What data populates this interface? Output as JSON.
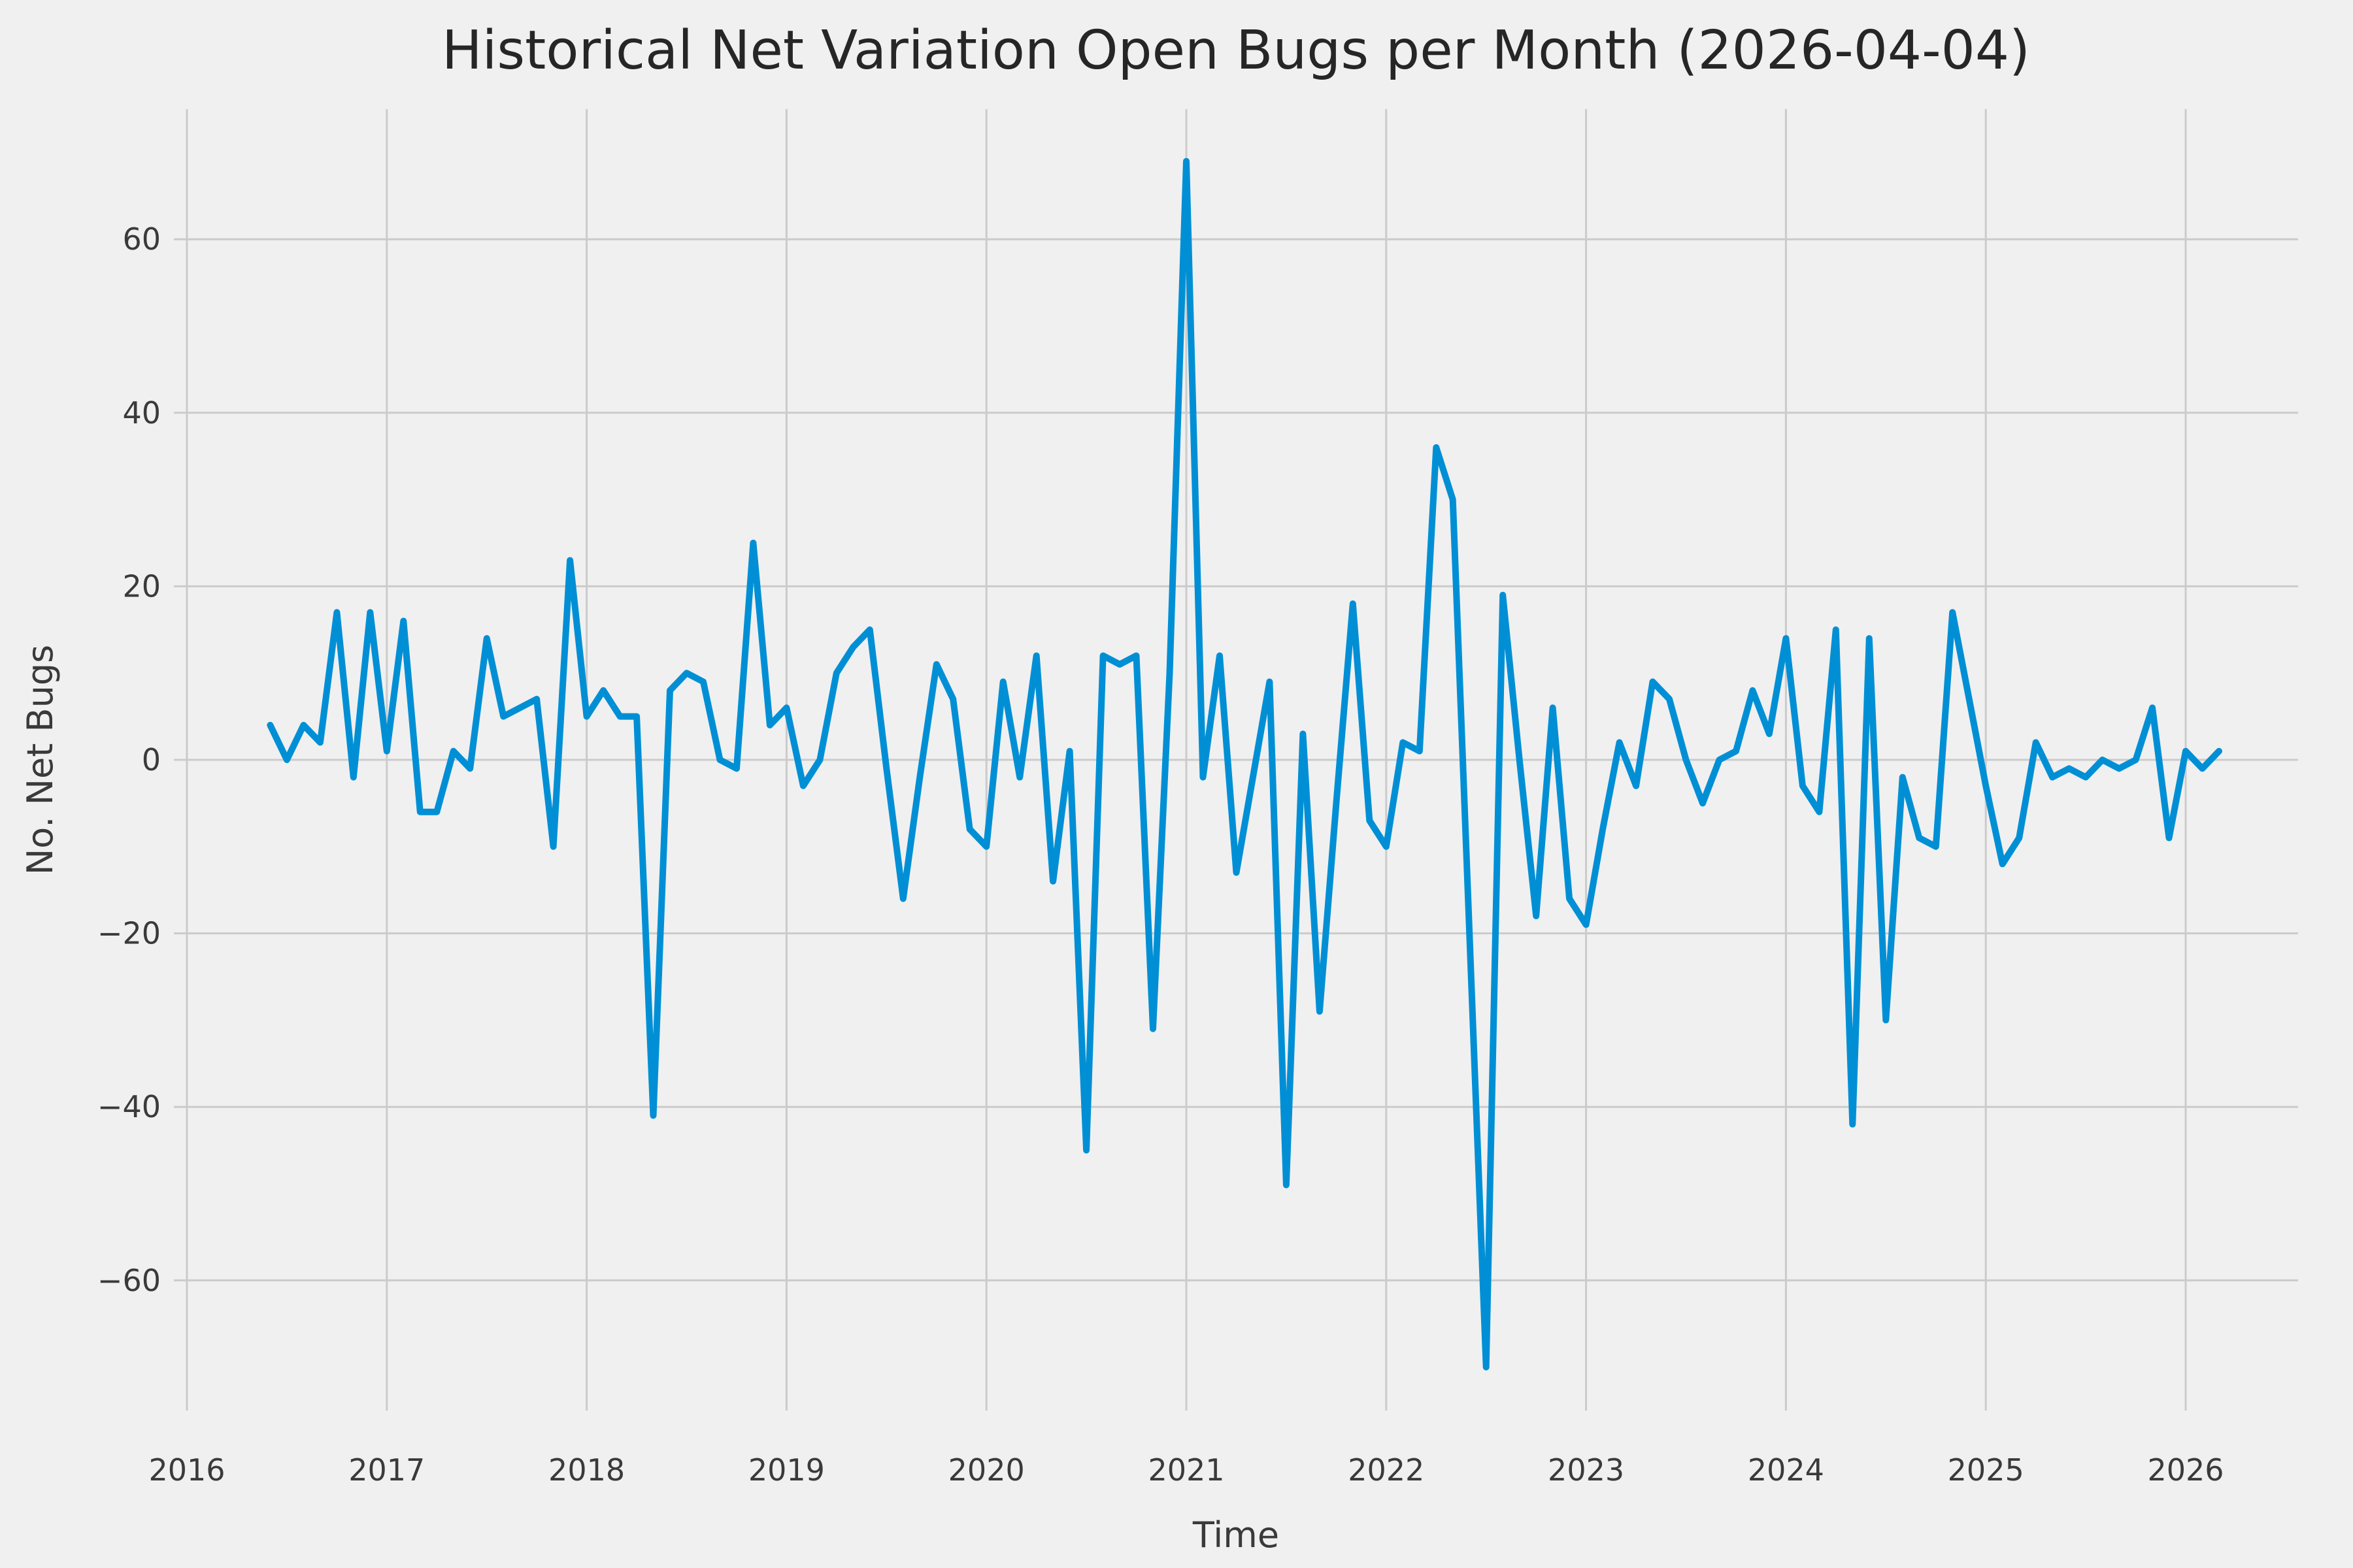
{
  "title": "Historical Net Variation Open Bugs per Month (2026-04-04)",
  "chart_data": {
    "type": "line",
    "title": "Historical Net Variation Open Bugs per Month (2026-04-04)",
    "xlabel": "Time",
    "ylabel": "No. Net Bugs",
    "legend_position": "none",
    "grid": true,
    "line_color": "#008fd5",
    "background_color": "#f0f0f0",
    "grid_color": "#cbcbcb",
    "text_color": "#3a3a3a",
    "xticks": [
      "2016",
      "2017",
      "2018",
      "2019",
      "2020",
      "2021",
      "2022",
      "2023",
      "2024",
      "2025",
      "2026"
    ],
    "yticks": [
      60,
      40,
      20,
      0,
      -20,
      -40,
      -60
    ],
    "ylim": [
      -75,
      75
    ],
    "x": [
      "2016-06",
      "2016-07",
      "2016-08",
      "2016-09",
      "2016-10",
      "2016-11",
      "2016-12",
      "2017-01",
      "2017-02",
      "2017-03",
      "2017-04",
      "2017-05",
      "2017-06",
      "2017-07",
      "2017-08",
      "2017-09",
      "2017-10",
      "2017-11",
      "2017-12",
      "2018-01",
      "2018-02",
      "2018-03",
      "2018-04",
      "2018-05",
      "2018-06",
      "2018-07",
      "2018-08",
      "2018-09",
      "2018-10",
      "2018-11",
      "2018-12",
      "2019-01",
      "2019-02",
      "2019-03",
      "2019-04",
      "2019-05",
      "2019-06",
      "2019-07",
      "2019-08",
      "2019-09",
      "2019-10",
      "2019-11",
      "2019-12",
      "2020-01",
      "2020-02",
      "2020-03",
      "2020-04",
      "2020-05",
      "2020-06",
      "2020-07",
      "2020-08",
      "2020-09",
      "2020-10",
      "2020-11",
      "2020-12",
      "2021-01",
      "2021-02",
      "2021-03",
      "2021-04",
      "2021-05",
      "2021-06",
      "2021-07",
      "2021-08",
      "2021-09",
      "2021-10",
      "2021-11",
      "2021-12",
      "2022-01",
      "2022-02",
      "2022-03",
      "2022-04",
      "2022-05",
      "2022-06",
      "2022-07",
      "2022-08",
      "2022-09",
      "2022-10",
      "2022-11",
      "2022-12",
      "2023-01",
      "2023-02",
      "2023-03",
      "2023-04",
      "2023-05",
      "2023-06",
      "2023-07",
      "2023-08",
      "2023-09",
      "2023-10",
      "2023-11",
      "2023-12",
      "2024-01",
      "2024-02",
      "2024-03",
      "2024-04",
      "2024-05",
      "2024-06",
      "2024-07",
      "2024-08",
      "2024-09",
      "2024-10",
      "2024-11",
      "2024-12",
      "2025-01",
      "2025-02",
      "2025-03",
      "2025-04",
      "2025-05",
      "2025-06",
      "2025-07",
      "2025-08",
      "2025-09",
      "2025-10",
      "2025-11",
      "2025-12",
      "2026-01",
      "2026-02",
      "2026-03"
    ],
    "values": [
      4,
      0,
      4,
      2,
      17,
      -2,
      17,
      1,
      16,
      -6,
      -6,
      1,
      -1,
      14,
      5,
      6,
      7,
      -10,
      23,
      5,
      8,
      5,
      5,
      -41,
      8,
      10,
      9,
      0,
      -1,
      25,
      4,
      6,
      -3,
      0,
      10,
      13,
      15,
      -1,
      -16,
      -2,
      11,
      7,
      -8,
      -10,
      9,
      -2,
      12,
      -14,
      1,
      -45,
      12,
      11,
      12,
      -31,
      10,
      69,
      -2,
      12,
      -13,
      -2,
      9,
      -49,
      3,
      -29,
      -5,
      18,
      -7,
      -10,
      2,
      1,
      36,
      30,
      -20,
      -70,
      19,
      0,
      -18,
      6,
      -16,
      -19,
      -8,
      2,
      -3,
      9,
      7,
      0,
      -5,
      0,
      1,
      8,
      3,
      14,
      -3,
      -6,
      15,
      -42,
      14,
      -30,
      -2,
      -9,
      -10,
      17,
      7,
      -3,
      -12,
      -9,
      2,
      -2,
      -1,
      -2,
      0,
      -1,
      0,
      6,
      -9,
      1,
      -1,
      1
    ]
  }
}
